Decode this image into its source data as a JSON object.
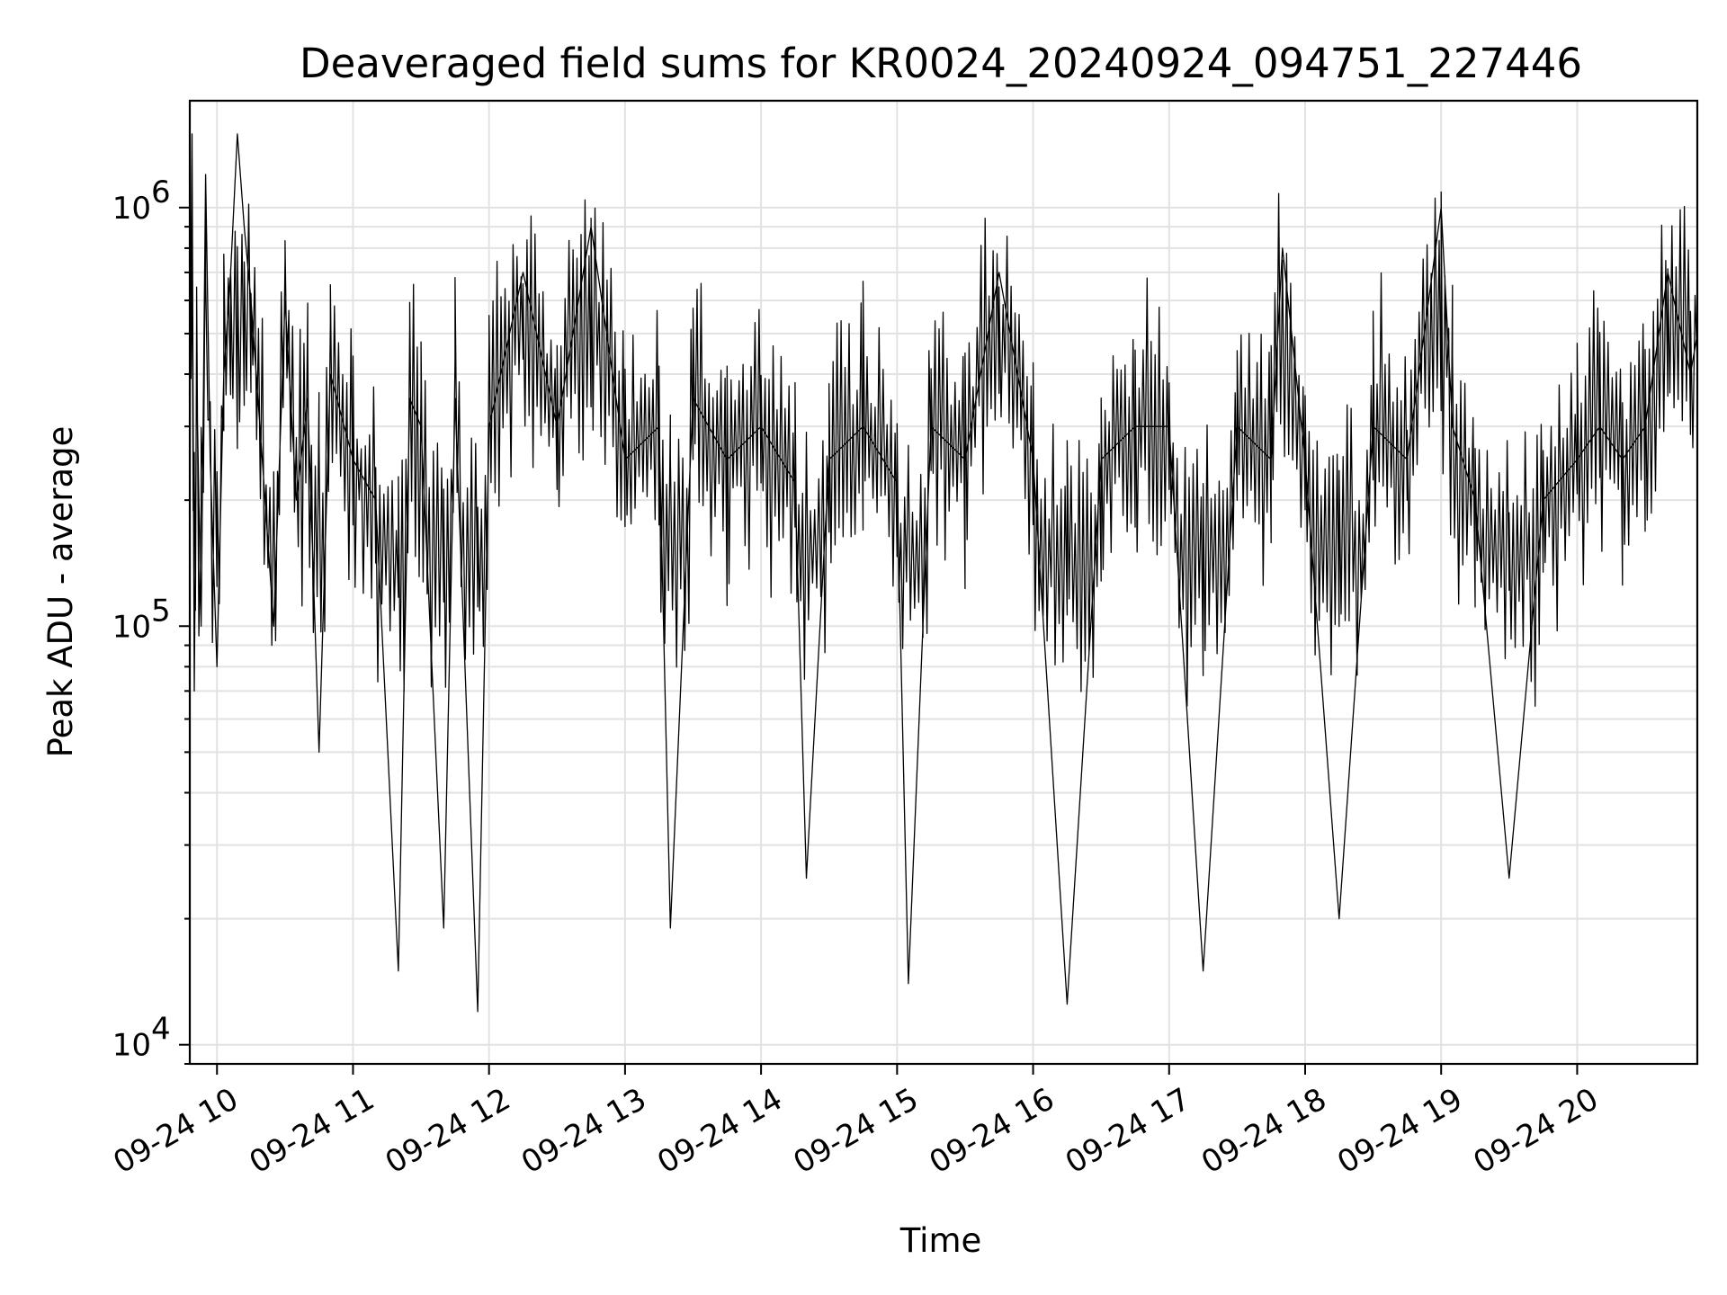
{
  "chart_data": {
    "type": "line",
    "title": "Deaveraged field sums for KR0024_20240924_094751_227446",
    "xlabel": "Time",
    "ylabel": "Peak ADU - average",
    "yscale": "log",
    "xlim": [
      "2024-09-24 09:48",
      "2024-09-24 20:53"
    ],
    "ylim": [
      9000,
      1800000
    ],
    "grid": true,
    "series_color": "#000000",
    "x_ticks": [
      {
        "value": "2024-09-24 10:00",
        "label": "09-24 10"
      },
      {
        "value": "2024-09-24 11:00",
        "label": "09-24 11"
      },
      {
        "value": "2024-09-24 12:00",
        "label": "09-24 12"
      },
      {
        "value": "2024-09-24 13:00",
        "label": "09-24 13"
      },
      {
        "value": "2024-09-24 14:00",
        "label": "09-24 14"
      },
      {
        "value": "2024-09-24 15:00",
        "label": "09-24 15"
      },
      {
        "value": "2024-09-24 16:00",
        "label": "09-24 16"
      },
      {
        "value": "2024-09-24 17:00",
        "label": "09-24 17"
      },
      {
        "value": "2024-09-24 18:00",
        "label": "09-24 18"
      },
      {
        "value": "2024-09-24 19:00",
        "label": "09-24 19"
      },
      {
        "value": "2024-09-24 20:00",
        "label": "09-24 20"
      }
    ],
    "y_ticks": [
      {
        "value": 10000,
        "base": "10",
        "exp": "4"
      },
      {
        "value": 100000,
        "base": "10",
        "exp": "5"
      },
      {
        "value": 1000000,
        "base": "10",
        "exp": "6"
      }
    ],
    "series": [
      {
        "x": [
          "2024-09-24 09:48",
          "2024-09-24 09:49",
          "2024-09-24 09:50",
          "2024-09-24 09:51",
          "2024-09-24 09:53",
          "2024-09-24 09:55",
          "2024-09-24 09:57",
          "2024-09-24 10:00",
          "2024-09-24 10:03",
          "2024-09-24 10:06",
          "2024-09-24 10:09",
          "2024-09-24 10:12",
          "2024-09-24 10:15",
          "2024-09-24 10:20",
          "2024-09-24 10:25",
          "2024-09-24 10:30",
          "2024-09-24 10:35",
          "2024-09-24 10:40",
          "2024-09-24 10:45",
          "2024-09-24 10:50",
          "2024-09-24 11:00",
          "2024-09-24 11:10",
          "2024-09-24 11:20",
          "2024-09-24 11:25",
          "2024-09-24 11:30",
          "2024-09-24 11:40",
          "2024-09-24 11:45",
          "2024-09-24 11:55",
          "2024-09-24 12:00",
          "2024-09-24 12:15",
          "2024-09-24 12:30",
          "2024-09-24 12:45",
          "2024-09-24 13:00",
          "2024-09-24 13:15",
          "2024-09-24 13:20",
          "2024-09-24 13:30",
          "2024-09-24 13:45",
          "2024-09-24 14:00",
          "2024-09-24 14:15",
          "2024-09-24 14:20",
          "2024-09-24 14:30",
          "2024-09-24 14:45",
          "2024-09-24 15:00",
          "2024-09-24 15:05",
          "2024-09-24 15:15",
          "2024-09-24 15:30",
          "2024-09-24 15:45",
          "2024-09-24 16:00",
          "2024-09-24 16:15",
          "2024-09-24 16:30",
          "2024-09-24 16:45",
          "2024-09-24 17:00",
          "2024-09-24 17:15",
          "2024-09-24 17:30",
          "2024-09-24 17:45",
          "2024-09-24 17:50",
          "2024-09-24 18:00",
          "2024-09-24 18:15",
          "2024-09-24 18:30",
          "2024-09-24 18:45",
          "2024-09-24 19:00",
          "2024-09-24 19:05",
          "2024-09-24 19:15",
          "2024-09-24 19:30",
          "2024-09-24 19:45",
          "2024-09-24 20:00",
          "2024-09-24 20:10",
          "2024-09-24 20:20",
          "2024-09-24 20:30",
          "2024-09-24 20:40",
          "2024-09-24 20:50",
          "2024-09-24 20:53"
        ],
        "y": [
          300000,
          1500000,
          70000,
          400000,
          100000,
          1200000,
          250000,
          80000,
          400000,
          700000,
          1500000,
          900000,
          600000,
          250000,
          100000,
          600000,
          200000,
          350000,
          50000,
          400000,
          250000,
          200000,
          15000,
          350000,
          300000,
          19000,
          350000,
          12000,
          300000,
          700000,
          300000,
          900000,
          250000,
          300000,
          19000,
          350000,
          250000,
          300000,
          220000,
          25000,
          250000,
          300000,
          220000,
          14000,
          300000,
          250000,
          700000,
          250000,
          12500,
          250000,
          300000,
          300000,
          15000,
          300000,
          250000,
          800000,
          250000,
          20000,
          300000,
          250000,
          1000000,
          300000,
          200000,
          25000,
          200000,
          250000,
          300000,
          250000,
          300000,
          700000,
          400000,
          500000
        ]
      }
    ]
  }
}
